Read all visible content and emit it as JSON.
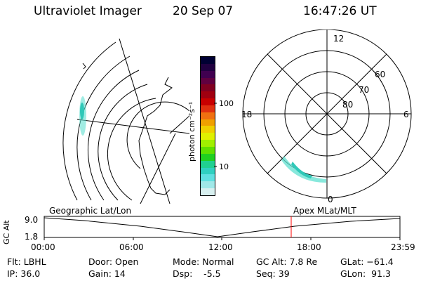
{
  "header": {
    "instrument": "Ultraviolet Imager",
    "date": "20 Sep 07",
    "time": "16:47:26 UT"
  },
  "geographic_panel": {
    "label": "Geographic Lat/Lon"
  },
  "colorbar": {
    "label": "photon cm⁻²s⁻¹",
    "ticks": [
      "100",
      "10"
    ],
    "colors": [
      "#000033",
      "#200040",
      "#400050",
      "#600040",
      "#800020",
      "#a00010",
      "#c80000",
      "#e03010",
      "#f07010",
      "#f0a000",
      "#f0d000",
      "#e0f000",
      "#a0f000",
      "#60e000",
      "#20d020",
      "#20d090",
      "#30d0c0",
      "#60e0e0",
      "#a0e8e8",
      "#d8f0f0"
    ]
  },
  "polar_panel": {
    "label": "Apex MLat/MLT",
    "mlt_labels": {
      "top": "12",
      "left": "18",
      "right": "6",
      "bottom": "0"
    },
    "lat_labels": [
      "60",
      "70",
      "80"
    ]
  },
  "altitude_plot": {
    "ylabel": "GC Alt",
    "yticks": [
      "9.0",
      "1.8"
    ],
    "xticks": [
      "00:00",
      "06:00",
      "12:00",
      "18:00",
      "23:59"
    ],
    "marker_time": "16:47",
    "marker_color": "#ff0000"
  },
  "info": {
    "filter": "Flt: LBHL",
    "ip": "IP: 36.0",
    "door": "Door: Open",
    "gain": "Gain: 14",
    "mode": "Mode: Normal",
    "dsp": "Dsp:    -5.5",
    "gc_alt": "GC Alt: 7.8 Re",
    "seq": "Seq: 39",
    "glat": "GLat: −61.4",
    "glon": "GLon:  91.3"
  }
}
